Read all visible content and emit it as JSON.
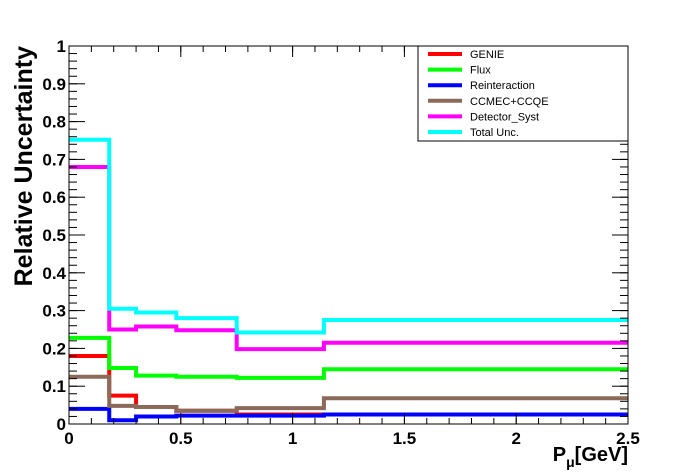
{
  "chart_data": {
    "type": "line",
    "style": "step-histogram",
    "title": "",
    "xlabel": "P",
    "xlabel_sub": "μ",
    "xlabel_unit": "[GeV]",
    "ylabel": "Relative Uncertainty",
    "xlim": [
      0,
      2.5
    ],
    "ylim": [
      0,
      1
    ],
    "x_ticks": [
      {
        "value": 0,
        "label": "0"
      },
      {
        "value": 0.5,
        "label": "0.5"
      },
      {
        "value": 1,
        "label": "1"
      },
      {
        "value": 1.5,
        "label": "1.5"
      },
      {
        "value": 2,
        "label": "2"
      },
      {
        "value": 2.5,
        "label": "2.5"
      }
    ],
    "y_ticks": [
      {
        "value": 0,
        "label": "0"
      },
      {
        "value": 0.1,
        "label": "0.1"
      },
      {
        "value": 0.2,
        "label": "0.2"
      },
      {
        "value": 0.3,
        "label": "0.3"
      },
      {
        "value": 0.4,
        "label": "0.4"
      },
      {
        "value": 0.5,
        "label": "0.5"
      },
      {
        "value": 0.6,
        "label": "0.6"
      },
      {
        "value": 0.7,
        "label": "0.7"
      },
      {
        "value": 0.8,
        "label": "0.8"
      },
      {
        "value": 0.9,
        "label": "0.9"
      },
      {
        "value": 1,
        "label": "1"
      }
    ],
    "grid": false,
    "legend_position": "top-right",
    "bin_edges": [
      0,
      0.18,
      0.3,
      0.48,
      0.75,
      1.14,
      2.5
    ],
    "series": [
      {
        "name": "GENIE",
        "color": "#ff0000",
        "values": [
          0.18,
          0.075,
          0.045,
          0.035,
          0.025,
          0.025
        ]
      },
      {
        "name": "Flux",
        "color": "#00ff00",
        "values": [
          0.228,
          0.148,
          0.128,
          0.125,
          0.122,
          0.145
        ]
      },
      {
        "name": "Reinteraction",
        "color": "#0000ff",
        "values": [
          0.04,
          0.01,
          0.02,
          0.022,
          0.022,
          0.025
        ]
      },
      {
        "name": "CCMEC+CCQE",
        "color": "#8b6a5a",
        "values": [
          0.125,
          0.048,
          0.045,
          0.035,
          0.042,
          0.068
        ]
      },
      {
        "name": "Detector_Syst",
        "color": "#ff00ff",
        "values": [
          0.68,
          0.25,
          0.258,
          0.248,
          0.198,
          0.215
        ]
      },
      {
        "name": "Total Unc.",
        "color": "#00ffff",
        "values": [
          0.752,
          0.305,
          0.295,
          0.28,
          0.242,
          0.275
        ]
      }
    ]
  }
}
